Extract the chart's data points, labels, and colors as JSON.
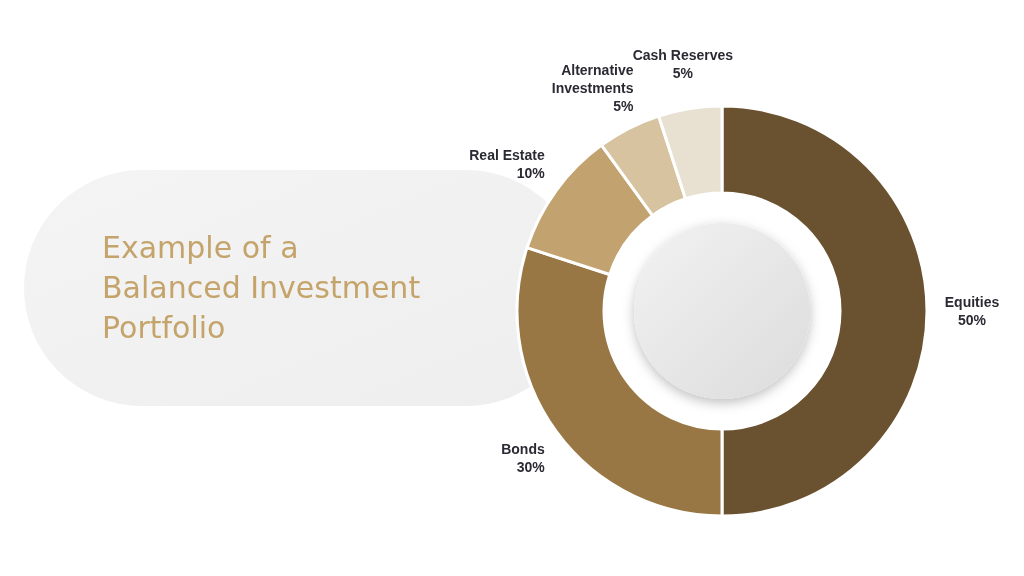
{
  "chart_data": {
    "type": "donut",
    "title": "Example of a Balanced Investment Portfolio",
    "categories": [
      "Equities",
      "Bonds",
      "Real Estate",
      "Alternative Investments",
      "Cash Reserves"
    ],
    "values": [
      50,
      30,
      10,
      5,
      5
    ],
    "value_labels": [
      "50%",
      "30%",
      "10%",
      "5%",
      "5%"
    ],
    "colors": [
      "#6a5230",
      "#987744",
      "#c2a26f",
      "#d7c39f",
      "#e8e0d0"
    ]
  }
}
